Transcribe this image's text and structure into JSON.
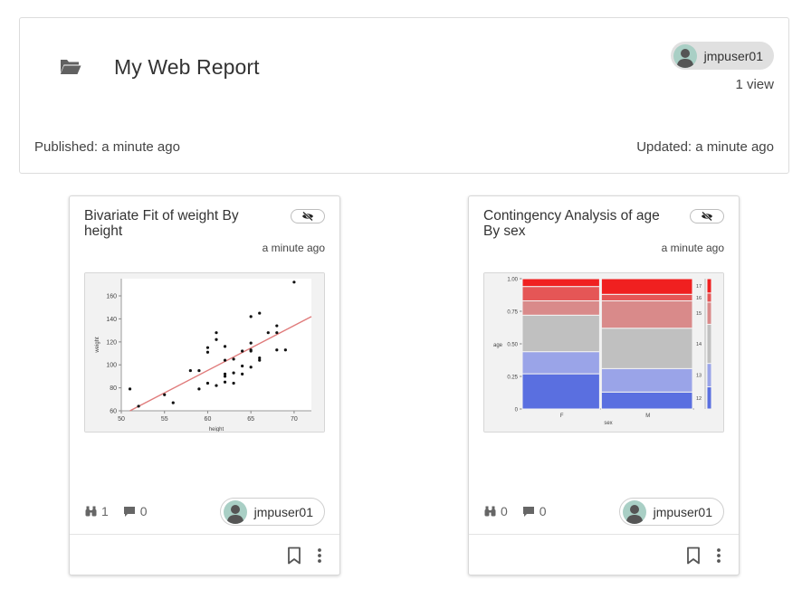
{
  "report": {
    "title": "My Web Report",
    "owner": "jmpuser01",
    "views": "1 view",
    "published": "Published: a minute ago",
    "updated": "Updated: a minute ago",
    "icon": "folder-open-icon"
  },
  "tiles": [
    {
      "title": "Bivariate Fit of weight By height",
      "time": "a minute ago",
      "views_count": "1",
      "comments_count": "0",
      "owner": "jmpuser01",
      "chart_data": {
        "type": "scatter",
        "title": "",
        "xlabel": "height",
        "ylabel": "weight",
        "xlim": [
          50,
          72
        ],
        "ylim": [
          60,
          175
        ],
        "x_ticks": [
          "50",
          "55",
          "60",
          "65",
          "70"
        ],
        "y_ticks": [
          "60",
          "80",
          "100",
          "120",
          "140",
          "160"
        ],
        "grid": false,
        "fit_line": {
          "x": [
            51,
            72
          ],
          "y": [
            60,
            142
          ],
          "color": "#e07b7b"
        },
        "points": [
          [
            51,
            79
          ],
          [
            52,
            64
          ],
          [
            55,
            74
          ],
          [
            56,
            67
          ],
          [
            58,
            95
          ],
          [
            59,
            95
          ],
          [
            59,
            79
          ],
          [
            60,
            84
          ],
          [
            60,
            111
          ],
          [
            60,
            115
          ],
          [
            61,
            82
          ],
          [
            61,
            122
          ],
          [
            61,
            128
          ],
          [
            62,
            85
          ],
          [
            62,
            90
          ],
          [
            62,
            92
          ],
          [
            62,
            104
          ],
          [
            62,
            116
          ],
          [
            63,
            84
          ],
          [
            63,
            93
          ],
          [
            63,
            105
          ],
          [
            64,
            92
          ],
          [
            64,
            99
          ],
          [
            64,
            112
          ],
          [
            65,
            98
          ],
          [
            65,
            112
          ],
          [
            65,
            113
          ],
          [
            65,
            119
          ],
          [
            65,
            142
          ],
          [
            66,
            104
          ],
          [
            66,
            106
          ],
          [
            66,
            145
          ],
          [
            67,
            128
          ],
          [
            68,
            113
          ],
          [
            68,
            128
          ],
          [
            68,
            134
          ],
          [
            69,
            113
          ],
          [
            70,
            172
          ]
        ]
      }
    },
    {
      "title": "Contingency Analysis of age By sex",
      "time": "a minute ago",
      "views_count": "0",
      "comments_count": "0",
      "owner": "jmpuser01",
      "chart_data": {
        "type": "mosaic",
        "title": "",
        "xlabel": "sex",
        "ylabel": "age",
        "categories": [
          "F",
          "M"
        ],
        "column_widths": [
          0.46,
          0.54
        ],
        "y_ticks": [
          "0",
          "0.25",
          "0.50",
          "0.75",
          "1.00"
        ],
        "series": [
          {
            "name": "12",
            "color": "#5a6fe0",
            "values": [
              0.27,
              0.13
            ]
          },
          {
            "name": "13",
            "color": "#9aa4e8",
            "values": [
              0.17,
              0.18
            ]
          },
          {
            "name": "14",
            "color": "#c0c0c0",
            "values": [
              0.28,
              0.31
            ]
          },
          {
            "name": "15",
            "color": "#d98a8a",
            "values": [
              0.11,
              0.21
            ]
          },
          {
            "name": "16",
            "color": "#e55656",
            "values": [
              0.11,
              0.05
            ]
          },
          {
            "name": "17",
            "color": "#f02020",
            "values": [
              0.06,
              0.12
            ]
          }
        ],
        "marginal": [
          0.17,
          0.18,
          0.3,
          0.17,
          0.07,
          0.11
        ]
      }
    }
  ]
}
